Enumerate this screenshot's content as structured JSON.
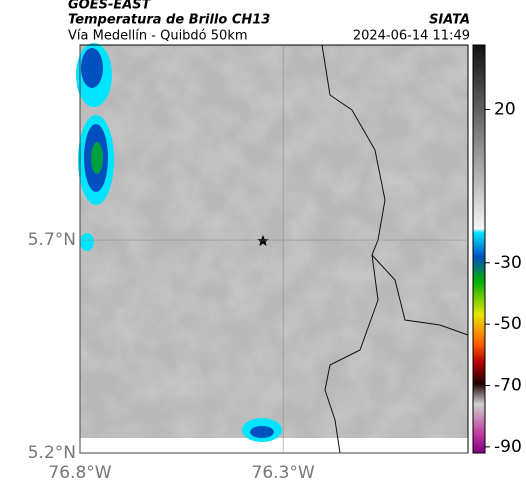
{
  "header": {
    "satellite": "GOES-EAST",
    "product": "Temperatura de Brillo CH13",
    "source": "SIATA",
    "location": "Vía Medellín - Quibdó 50km",
    "datetime": "2024-06-14 11:49"
  },
  "map": {
    "xlim": [
      -76.8,
      -75.845
    ],
    "ylim": [
      5.2,
      6.158
    ],
    "xticks": [
      {
        "value": -76.8,
        "label": "76.8°W"
      },
      {
        "value": -76.3,
        "label": "76.3°W"
      }
    ],
    "yticks": [
      {
        "value": 5.2,
        "label": "5.2°N"
      },
      {
        "value": 5.7,
        "label": "5.7°N"
      }
    ],
    "grid": true
  },
  "colorbar": {
    "lim": [
      41,
      -92
    ],
    "ticks": [
      20,
      -30,
      -50,
      -70,
      -90
    ]
  }
}
